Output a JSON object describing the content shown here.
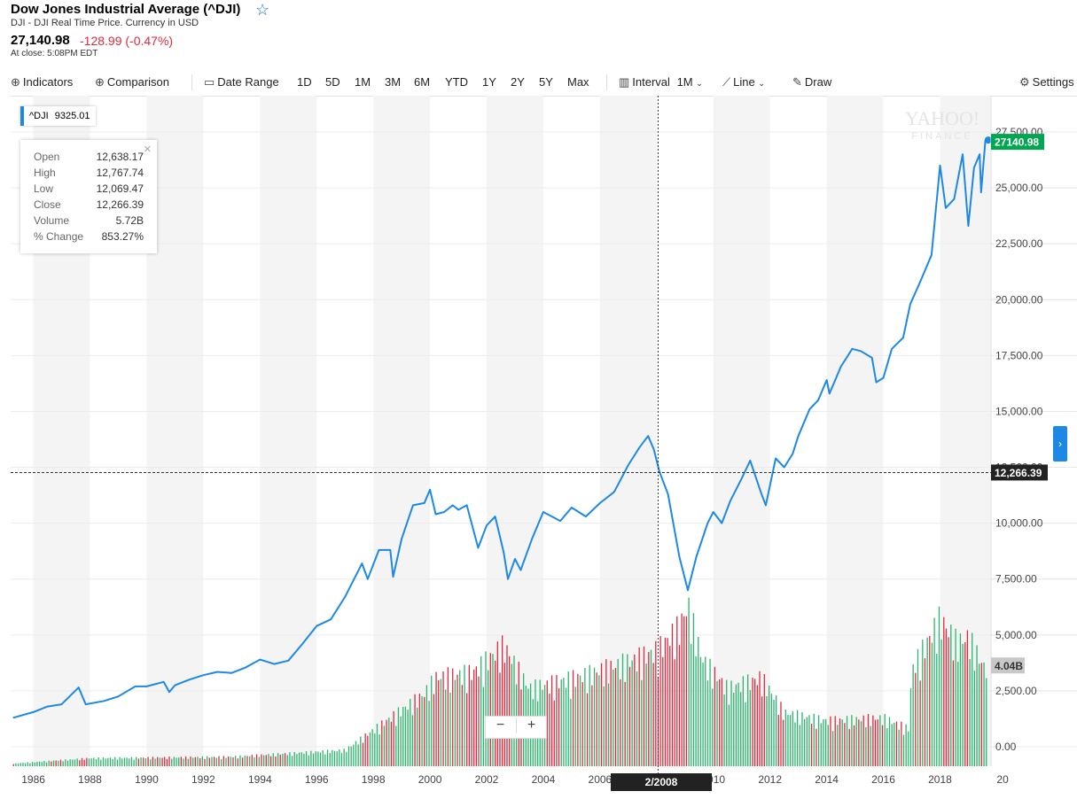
{
  "header": {
    "title": "Dow Jones Industrial Average (^DJI)",
    "subtitle": "DJI - DJI Real Time Price. Currency in USD",
    "price": "27,140.98",
    "change": "-128.99 (-0.47%)",
    "close_note": "At close: 5:08PM EDT",
    "star_icon": "star-outline-icon"
  },
  "toolbar": {
    "indicators": "Indicators",
    "comparison": "Comparison",
    "date_range": "Date Range",
    "ranges": [
      "1D",
      "5D",
      "1M",
      "3M",
      "6M",
      "YTD",
      "1Y",
      "2Y",
      "5Y",
      "Max"
    ],
    "interval_label": "Interval",
    "interval_value": "1M",
    "chart_type": "Line",
    "draw": "Draw",
    "settings": "Settings"
  },
  "legend": {
    "symbol": "^DJI",
    "value": "9325.01"
  },
  "tooltip": {
    "rows": [
      {
        "k": "Open",
        "v": "12,638.17"
      },
      {
        "k": "High",
        "v": "12,767.74"
      },
      {
        "k": "Low",
        "v": "12,069.47"
      },
      {
        "k": "Close",
        "v": "12,266.39"
      },
      {
        "k": "Volume",
        "v": "5.72B"
      },
      {
        "k": "% Change",
        "v": "853.27%"
      }
    ]
  },
  "watermark": {
    "line1": "YAHOO!",
    "line2": "FINANCE"
  },
  "price_flag": "27140.98",
  "crosshair_flag": "12,266.39",
  "volume_flag": "4.04B",
  "date_flag": "2/2008",
  "zoom": {
    "minus": "−",
    "plus": "+"
  },
  "colors": {
    "line": "#1e88e5",
    "up": "#2bb56d",
    "down": "#e0293f",
    "price_flag": "#00a650"
  },
  "chart_data": {
    "type": "line",
    "x_ticks": [
      "1986",
      "1988",
      "1990",
      "1992",
      "1994",
      "1996",
      "1998",
      "2000",
      "2002",
      "2004",
      "2006",
      "2008",
      "2010",
      "2012",
      "2014",
      "2016",
      "2018",
      "20"
    ],
    "y_ticks": [
      "0.00",
      "2,500.00",
      "5,000.00",
      "7,500.00",
      "10,000.00",
      "12,500.00",
      "15,000.00",
      "17,500.00",
      "20,000.00",
      "22,500.00",
      "25,000.00",
      "27,500.00"
    ],
    "ylim": [
      0,
      28500
    ],
    "xlim": [
      1985.2,
      2019.8
    ],
    "grid": true,
    "series": [
      {
        "points": [
          [
            1985.3,
            1300
          ],
          [
            1986.0,
            1550
          ],
          [
            1986.5,
            1800
          ],
          [
            1987.0,
            1900
          ],
          [
            1987.6,
            2650
          ],
          [
            1987.85,
            1900
          ],
          [
            1988.5,
            2050
          ],
          [
            1989.0,
            2250
          ],
          [
            1989.6,
            2700
          ],
          [
            1990.0,
            2700
          ],
          [
            1990.6,
            2900
          ],
          [
            1990.8,
            2450
          ],
          [
            1991.0,
            2750
          ],
          [
            1991.5,
            3000
          ],
          [
            1992.0,
            3200
          ],
          [
            1992.5,
            3350
          ],
          [
            1993.0,
            3300
          ],
          [
            1993.5,
            3550
          ],
          [
            1994.0,
            3900
          ],
          [
            1994.5,
            3700
          ],
          [
            1995.0,
            3850
          ],
          [
            1995.5,
            4600
          ],
          [
            1996.0,
            5400
          ],
          [
            1996.5,
            5700
          ],
          [
            1997.0,
            6700
          ],
          [
            1997.6,
            8200
          ],
          [
            1997.8,
            7500
          ],
          [
            1998.2,
            8800
          ],
          [
            1998.6,
            8800
          ],
          [
            1998.7,
            7600
          ],
          [
            1999.0,
            9300
          ],
          [
            1999.4,
            10800
          ],
          [
            1999.8,
            10900
          ],
          [
            2000.0,
            11500
          ],
          [
            2000.2,
            10400
          ],
          [
            2000.5,
            10500
          ],
          [
            2000.8,
            10800
          ],
          [
            2001.0,
            10600
          ],
          [
            2001.3,
            10800
          ],
          [
            2001.7,
            8900
          ],
          [
            2002.0,
            9900
          ],
          [
            2002.3,
            10300
          ],
          [
            2002.6,
            8700
          ],
          [
            2002.75,
            7500
          ],
          [
            2003.0,
            8400
          ],
          [
            2003.2,
            7900
          ],
          [
            2003.6,
            9300
          ],
          [
            2004.0,
            10500
          ],
          [
            2004.6,
            10100
          ],
          [
            2005.0,
            10700
          ],
          [
            2005.5,
            10300
          ],
          [
            2006.0,
            10900
          ],
          [
            2006.5,
            11400
          ],
          [
            2007.0,
            12600
          ],
          [
            2007.4,
            13400
          ],
          [
            2007.7,
            13900
          ],
          [
            2007.9,
            13300
          ],
          [
            2008.1,
            12300
          ],
          [
            2008.4,
            11300
          ],
          [
            2008.8,
            8500
          ],
          [
            2009.1,
            7000
          ],
          [
            2009.4,
            8500
          ],
          [
            2009.8,
            10000
          ],
          [
            2010.0,
            10500
          ],
          [
            2010.3,
            10000
          ],
          [
            2010.6,
            11000
          ],
          [
            2011.0,
            12000
          ],
          [
            2011.3,
            12800
          ],
          [
            2011.7,
            11300
          ],
          [
            2011.85,
            10800
          ],
          [
            2012.2,
            12900
          ],
          [
            2012.5,
            12500
          ],
          [
            2012.8,
            13100
          ],
          [
            2013.0,
            13900
          ],
          [
            2013.4,
            15100
          ],
          [
            2013.7,
            15500
          ],
          [
            2014.0,
            16400
          ],
          [
            2014.1,
            15800
          ],
          [
            2014.5,
            17000
          ],
          [
            2014.9,
            17800
          ],
          [
            2015.2,
            17700
          ],
          [
            2015.6,
            17400
          ],
          [
            2015.75,
            16300
          ],
          [
            2016.0,
            16500
          ],
          [
            2016.3,
            17800
          ],
          [
            2016.7,
            18300
          ],
          [
            2016.95,
            19800
          ],
          [
            2017.3,
            20800
          ],
          [
            2017.7,
            22000
          ],
          [
            2018.0,
            26000
          ],
          [
            2018.2,
            24100
          ],
          [
            2018.5,
            24500
          ],
          [
            2018.8,
            26500
          ],
          [
            2019.0,
            23300
          ],
          [
            2019.2,
            25900
          ],
          [
            2019.4,
            26500
          ],
          [
            2019.45,
            24800
          ],
          [
            2019.6,
            27100
          ],
          [
            2019.7,
            27140
          ]
        ]
      }
    ],
    "volume": {
      "points": [
        [
          1985.3,
          0.1
        ],
        [
          1988.0,
          0.3
        ],
        [
          1993.0,
          0.35
        ],
        [
          1997.0,
          0.6
        ],
        [
          1999.8,
          2.7
        ],
        [
          2000.2,
          3.3
        ],
        [
          2001.5,
          3.5
        ],
        [
          2002.6,
          4.5
        ],
        [
          2003.5,
          2.9
        ],
        [
          2005.5,
          3.4
        ],
        [
          2007.0,
          3.9
        ],
        [
          2008.0,
          4.3
        ],
        [
          2008.8,
          5.2
        ],
        [
          2009.1,
          6.0
        ],
        [
          2009.6,
          4.0
        ],
        [
          2010.5,
          2.9
        ],
        [
          2011.7,
          3.3
        ],
        [
          2012.5,
          2.0
        ],
        [
          2014.0,
          1.7
        ],
        [
          2016.0,
          1.8
        ],
        [
          2016.9,
          1.4
        ],
        [
          2017.0,
          3.6
        ],
        [
          2018.0,
          5.5
        ],
        [
          2018.6,
          4.6
        ],
        [
          2019.0,
          4.8
        ],
        [
          2019.6,
          3.6
        ],
        [
          2019.7,
          4.04
        ]
      ],
      "unit": "B"
    }
  }
}
